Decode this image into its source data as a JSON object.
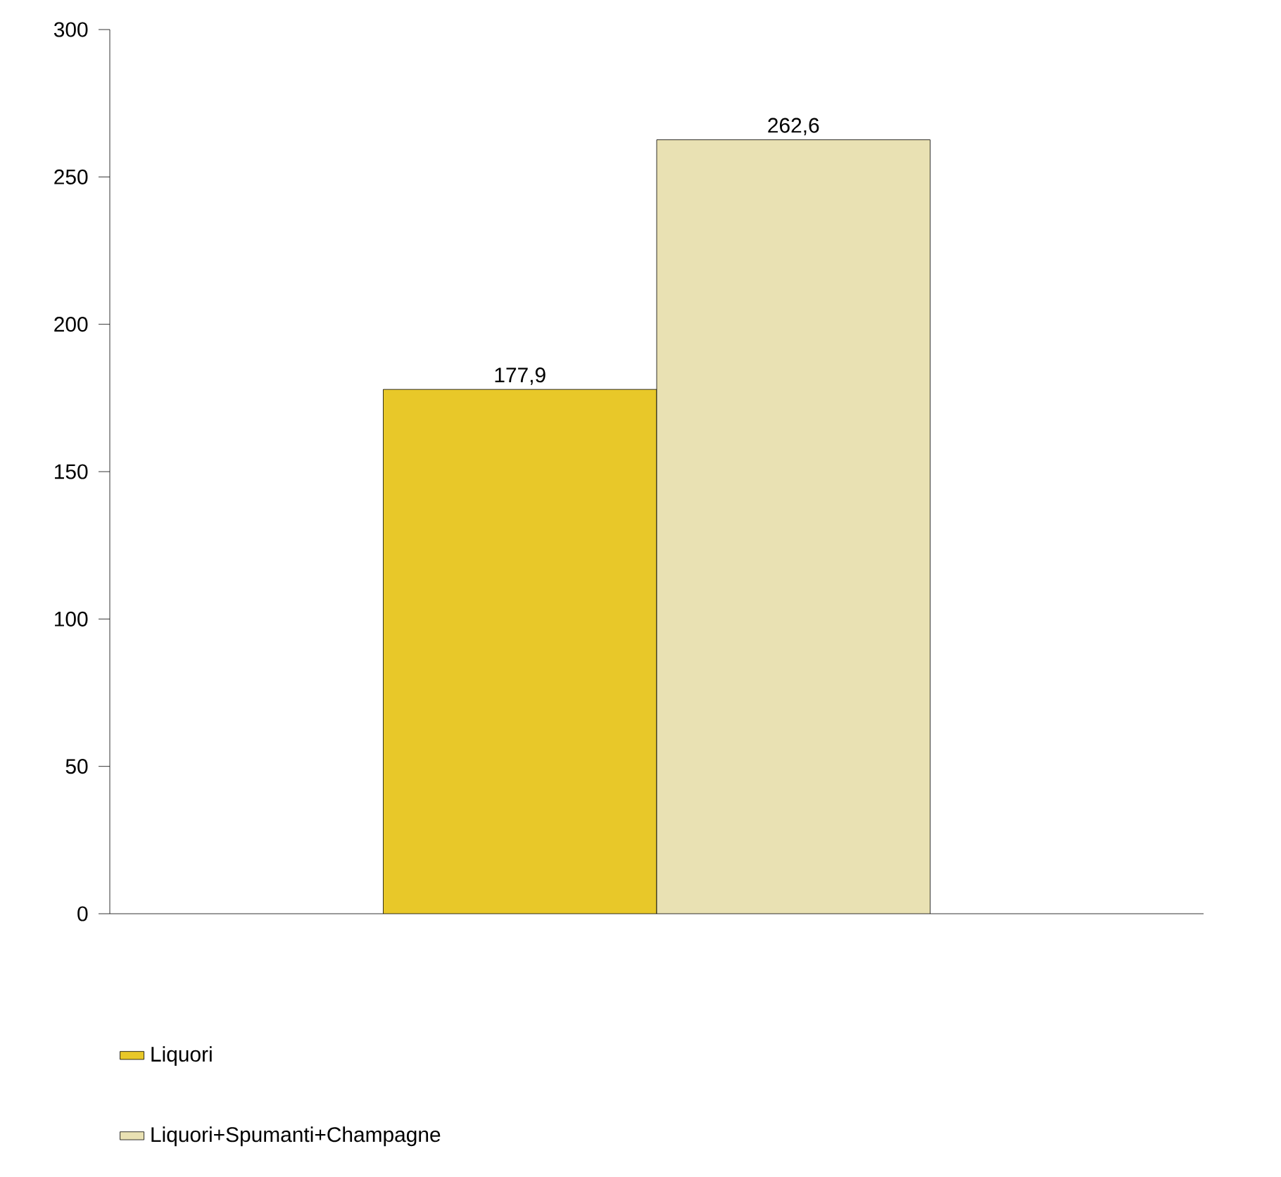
{
  "chart_data": {
    "type": "bar",
    "categories": [
      null
    ],
    "series": [
      {
        "name": "Liquori",
        "color": "#e8c829",
        "values": [
          177.9
        ],
        "value_labels": [
          "177,9"
        ]
      },
      {
        "name": "Liquori+Spumanti+Champagne",
        "color": "#e9e1b3",
        "values": [
          262.6
        ],
        "value_labels": [
          "262,6"
        ]
      }
    ],
    "ylim": [
      0,
      300
    ],
    "yticks": [
      0,
      50,
      100,
      150,
      200,
      250,
      300
    ],
    "grid": false,
    "legend": "bottom"
  }
}
